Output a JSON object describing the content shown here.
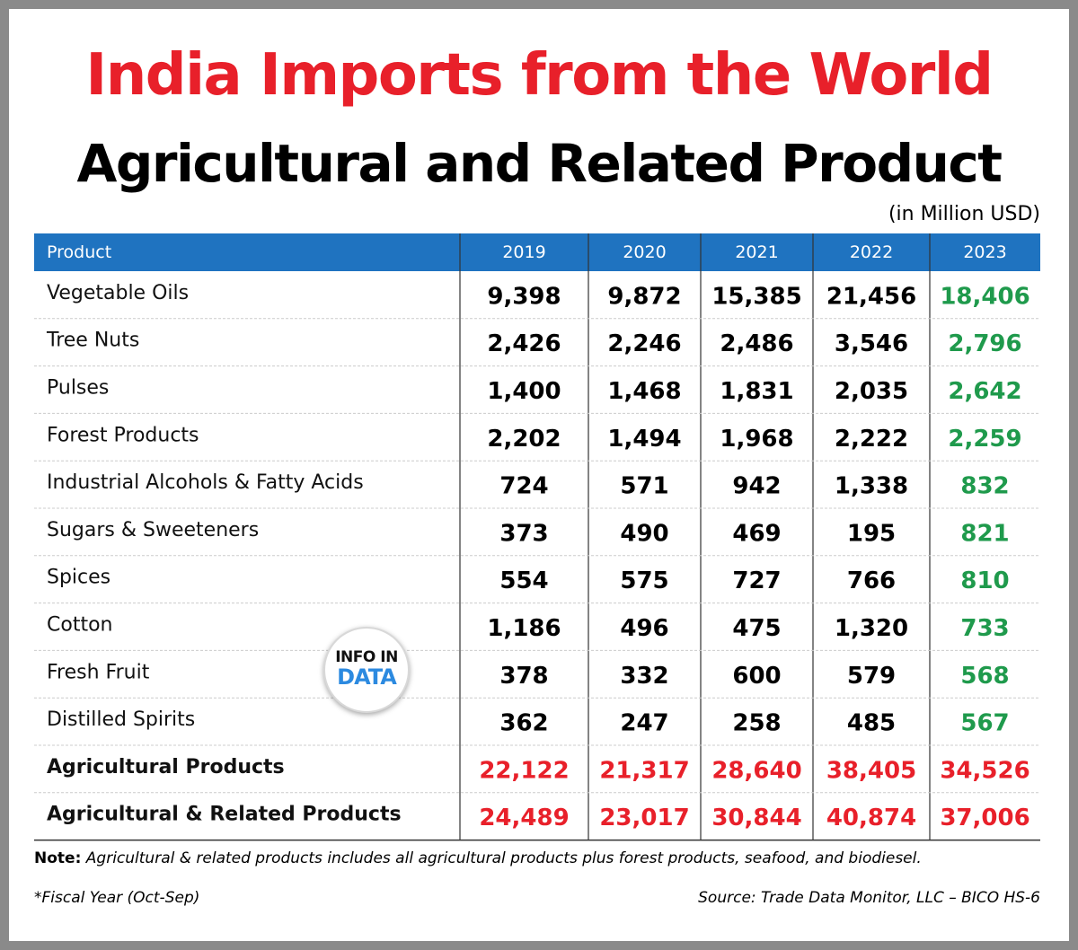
{
  "title": "India Imports from the World",
  "subtitle": "Agricultural and Related Product",
  "units": "(in Million USD)",
  "logo": {
    "top": "INFO IN",
    "bottom": "DATA"
  },
  "note": {
    "label": "Note:",
    "text": "Agricultural & related products includes all agricultural products plus forest products, seafood, and biodiesel."
  },
  "fiscal_note": "*Fiscal Year (Oct-Sep)",
  "source": "Source: Trade Data Monitor, LLC – BICO HS-6",
  "colors": {
    "title": "#e8202a",
    "header_bg": "#1f73c0",
    "header_text": "#ffffff",
    "value": "#000000",
    "latest_year_value": "#1f9a4c",
    "total_value": "#e8202a",
    "divider": "#cccccc"
  },
  "chart_data": {
    "type": "table",
    "header_label": "Product",
    "columns": [
      "2019",
      "2020",
      "2021",
      "2022",
      "2023"
    ],
    "rows": [
      {
        "label": "Vegetable Oils",
        "values": [
          "9,398",
          "9,872",
          "15,385",
          "21,456",
          "18,406"
        ]
      },
      {
        "label": "Tree Nuts",
        "values": [
          "2,426",
          "2,246",
          "2,486",
          "3,546",
          "2,796"
        ]
      },
      {
        "label": "Pulses",
        "values": [
          "1,400",
          "1,468",
          "1,831",
          "2,035",
          "2,642"
        ]
      },
      {
        "label": "Forest Products",
        "values": [
          "2,202",
          "1,494",
          "1,968",
          "2,222",
          "2,259"
        ]
      },
      {
        "label": "Industrial Alcohols & Fatty Acids",
        "values": [
          "724",
          "571",
          "942",
          "1,338",
          "832"
        ]
      },
      {
        "label": "Sugars & Sweeteners",
        "values": [
          "373",
          "490",
          "469",
          "195",
          "821"
        ]
      },
      {
        "label": "Spices",
        "values": [
          "554",
          "575",
          "727",
          "766",
          "810"
        ]
      },
      {
        "label": "Cotton",
        "values": [
          "1,186",
          "496",
          "475",
          "1,320",
          "733"
        ]
      },
      {
        "label": "Fresh Fruit",
        "values": [
          "378",
          "332",
          "600",
          "579",
          "568"
        ]
      },
      {
        "label": "Distilled Spirits",
        "values": [
          "362",
          "247",
          "258",
          "485",
          "567"
        ]
      }
    ],
    "totals": [
      {
        "label": "Agricultural Products",
        "values": [
          "22,122",
          "21,317",
          "28,640",
          "38,405",
          "34,526"
        ]
      },
      {
        "label": "Agricultural & Related Products",
        "values": [
          "24,489",
          "23,017",
          "30,844",
          "40,874",
          "37,006"
        ]
      }
    ]
  }
}
